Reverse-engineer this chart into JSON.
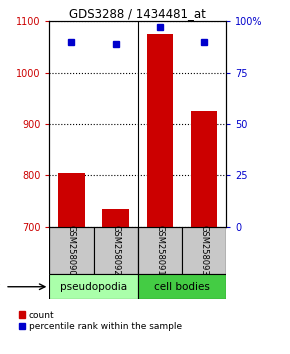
{
  "title": "GDS3288 / 1434481_at",
  "samples": [
    "GSM258090",
    "GSM258092",
    "GSM258091",
    "GSM258093"
  ],
  "count_values": [
    805,
    735,
    1075,
    925
  ],
  "percentile_values": [
    90,
    89,
    97,
    90
  ],
  "ylim_left": [
    700,
    1100
  ],
  "ylim_right": [
    0,
    100
  ],
  "yticks_left": [
    700,
    800,
    900,
    1000,
    1100
  ],
  "yticks_right": [
    0,
    25,
    50,
    75,
    100
  ],
  "ytick_labels_right": [
    "0",
    "25",
    "50",
    "75",
    "100%"
  ],
  "bar_color": "#cc0000",
  "dot_color": "#0000cc",
  "pseudopodia_color": "#aaffaa",
  "cell_bodies_color": "#44cc44",
  "legend_items": [
    "count",
    "percentile rank within the sample"
  ],
  "bar_width": 0.6,
  "bg_color": "#ffffff",
  "tick_label_color_left": "#cc0000",
  "tick_label_color_right": "#0000cc"
}
